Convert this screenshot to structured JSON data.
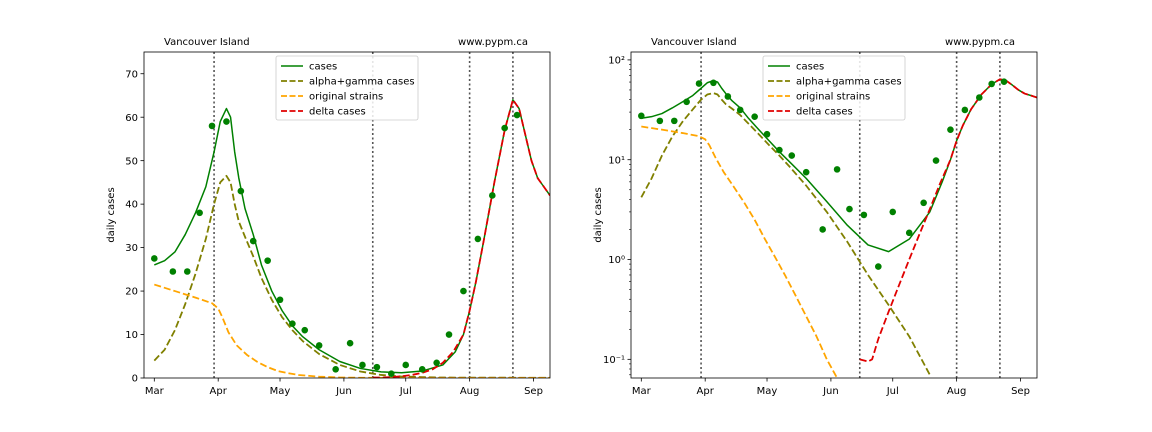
{
  "colors": {
    "cases": "#008000",
    "alpha_gamma": "#808000",
    "original": "#ffa500",
    "delta": "#e00000",
    "vline": "#555555"
  },
  "chart_data": [
    {
      "type": "line",
      "title_left": "Vancouver Island",
      "title_right": "www.pypm.ca",
      "ylabel": "daily cases",
      "yscale": "linear",
      "xlim": [
        -5,
        192
      ],
      "ylim": [
        0,
        75
      ],
      "yticks": [
        0,
        10,
        20,
        30,
        40,
        50,
        60,
        70
      ],
      "ytick_labels": [
        "0",
        "10",
        "20",
        "30",
        "40",
        "50",
        "60",
        "70"
      ],
      "xticks": [
        0,
        31,
        61,
        92,
        122,
        153,
        184
      ],
      "xtick_labels": [
        "Mar",
        "Apr",
        "May",
        "Jun",
        "Jul",
        "Aug",
        "Sep"
      ],
      "vlines": [
        29,
        106,
        153,
        174
      ],
      "legend": [
        "cases",
        "alpha+gamma cases",
        "original strains",
        "delta cases"
      ],
      "legend_position": "top-center",
      "series": [
        {
          "name": "cases",
          "style": "solid",
          "color": "cases",
          "x": [
            0,
            5,
            10,
            15,
            20,
            25,
            29,
            32,
            35,
            37,
            39,
            41,
            44,
            48,
            52,
            57,
            62,
            67,
            72,
            80,
            90,
            100,
            110,
            120,
            130,
            140,
            146,
            150,
            153,
            156,
            160,
            165,
            170,
            174,
            177,
            180,
            183,
            186,
            189,
            192
          ],
          "y": [
            26,
            27,
            29,
            33,
            38,
            44,
            52,
            59,
            62,
            60,
            52,
            46,
            39,
            33,
            26,
            20,
            15.5,
            12,
            9.5,
            6.5,
            3.8,
            2.2,
            1.4,
            1.2,
            1.6,
            3,
            6,
            10,
            15.5,
            22,
            32,
            45,
            57,
            64,
            62,
            56,
            50,
            46,
            44,
            42
          ]
        },
        {
          "name": "alpha+gamma cases",
          "style": "dashed",
          "color": "alpha_gamma",
          "x": [
            0,
            5,
            10,
            15,
            20,
            25,
            29,
            32,
            35,
            37,
            39,
            41,
            44,
            48,
            52,
            57,
            62,
            67,
            72,
            80,
            90,
            100,
            110,
            120,
            130,
            140,
            192
          ],
          "y": [
            4,
            6.5,
            11,
            17,
            24,
            32,
            40,
            45,
            46.5,
            45,
            40,
            36,
            32.5,
            28,
            23,
            18,
            14,
            11,
            8.5,
            5.5,
            3,
            1.5,
            0.7,
            0.35,
            0.2,
            0.1,
            0.05
          ]
        },
        {
          "name": "original strains",
          "style": "dashed",
          "color": "original",
          "x": [
            0,
            10,
            20,
            28,
            31,
            33,
            36,
            40,
            45,
            50,
            55,
            60,
            65,
            70,
            80,
            90,
            100,
            120,
            192
          ],
          "y": [
            21.5,
            20,
            18.5,
            17.2,
            16,
            14,
            10.5,
            7.5,
            5.3,
            3.7,
            2.5,
            1.6,
            1.1,
            0.7,
            0.3,
            0.12,
            0.05,
            0.02,
            0.02
          ]
        },
        {
          "name": "delta cases",
          "style": "dashed",
          "color": "delta",
          "x": [
            106,
            110,
            115,
            120,
            125,
            130,
            135,
            140,
            145,
            150,
            153,
            156,
            160,
            165,
            170,
            174,
            177,
            180,
            183,
            186,
            189,
            192
          ],
          "y": [
            0.1,
            0.1,
            0.2,
            0.4,
            0.7,
            1.2,
            2,
            3.5,
            6,
            10,
            15.5,
            22,
            32,
            45,
            57,
            64,
            62,
            56,
            50,
            46,
            44,
            42
          ]
        }
      ],
      "points": {
        "name": "data",
        "color": "cases",
        "x": [
          0,
          9,
          16,
          22,
          28,
          35,
          42,
          48,
          55,
          61,
          67,
          73,
          80,
          88,
          95,
          101,
          108,
          115,
          122,
          130,
          137,
          143,
          150,
          157,
          164,
          170,
          176
        ],
        "y": [
          27.5,
          24.5,
          24.5,
          38,
          58,
          59,
          43,
          31.5,
          27,
          18,
          12.5,
          11,
          7.5,
          2,
          8,
          3,
          2.5,
          1,
          3,
          2,
          3.5,
          10,
          20,
          32,
          42,
          57.5,
          60.5
        ]
      }
    },
    {
      "type": "line",
      "title_left": "Vancouver Island",
      "title_right": "www.pypm.ca",
      "ylabel": "daily cases",
      "yscale": "log",
      "xlim": [
        -5,
        192
      ],
      "ylim": [
        0.065,
        120
      ],
      "yticks": [
        0.1,
        1,
        10,
        100
      ],
      "ytick_labels": [
        "10⁻¹",
        "10⁰",
        "10¹",
        "10²"
      ],
      "xticks": [
        0,
        31,
        61,
        92,
        122,
        153,
        184
      ],
      "xtick_labels": [
        "Mar",
        "Apr",
        "May",
        "Jun",
        "Jul",
        "Aug",
        "Sep"
      ],
      "vlines": [
        29,
        106,
        153,
        174
      ],
      "legend": [
        "cases",
        "alpha+gamma cases",
        "original strains",
        "delta cases"
      ],
      "legend_position": "top-center",
      "series": [
        {
          "name": "cases",
          "style": "solid",
          "color": "cases",
          "x": [
            0,
            5,
            10,
            15,
            20,
            25,
            29,
            32,
            35,
            37,
            39,
            41,
            44,
            48,
            52,
            57,
            62,
            67,
            72,
            80,
            90,
            100,
            110,
            120,
            130,
            140,
            146,
            150,
            153,
            156,
            160,
            165,
            170,
            174,
            177,
            180,
            183,
            186,
            189,
            192
          ],
          "y": [
            26,
            27,
            29,
            33,
            38,
            44,
            52,
            59,
            62,
            60,
            52,
            46,
            39,
            33,
            26,
            20,
            15.5,
            12,
            9.5,
            6.5,
            3.8,
            2.2,
            1.4,
            1.2,
            1.6,
            3,
            6,
            10,
            15.5,
            22,
            32,
            45,
            57,
            64,
            62,
            56,
            50,
            46,
            44,
            42
          ]
        },
        {
          "name": "alpha+gamma cases",
          "style": "dashed",
          "color": "alpha_gamma",
          "x": [
            0,
            5,
            10,
            15,
            20,
            25,
            29,
            32,
            35,
            37,
            39,
            41,
            44,
            48,
            52,
            57,
            62,
            67,
            72,
            80,
            90,
            100,
            110,
            120,
            130,
            140
          ],
          "y": [
            4.2,
            6.5,
            11,
            17,
            24,
            32,
            40,
            45,
            46.5,
            45,
            40,
            36,
            32.5,
            28,
            23,
            18,
            14,
            11,
            8.5,
            5.5,
            3,
            1.5,
            0.7,
            0.35,
            0.17,
            0.07
          ]
        },
        {
          "name": "original strains",
          "style": "dashed",
          "color": "original",
          "x": [
            0,
            10,
            20,
            28,
            31,
            33,
            36,
            40,
            45,
            50,
            55,
            60,
            65,
            70,
            75,
            80,
            85,
            90,
            95
          ],
          "y": [
            21.5,
            20,
            18.5,
            17.2,
            16,
            14,
            10.5,
            7.5,
            5.3,
            3.7,
            2.5,
            1.6,
            1.05,
            0.68,
            0.43,
            0.27,
            0.17,
            0.1,
            0.065
          ]
        },
        {
          "name": "delta cases",
          "style": "dashed",
          "color": "delta",
          "x": [
            106,
            110,
            112,
            115,
            120,
            125,
            130,
            135,
            140,
            145,
            150,
            153,
            156,
            160,
            165,
            170,
            174,
            177,
            180,
            183,
            186,
            189,
            192
          ],
          "y": [
            0.1,
            0.095,
            0.1,
            0.16,
            0.3,
            0.55,
            1,
            1.8,
            3.2,
            5.8,
            10,
            15.5,
            22,
            32,
            45,
            57,
            64,
            62,
            56,
            50,
            46,
            44,
            42
          ]
        }
      ],
      "points": {
        "name": "data",
        "color": "cases",
        "x": [
          0,
          9,
          16,
          22,
          28,
          35,
          42,
          48,
          55,
          61,
          67,
          73,
          80,
          88,
          95,
          101,
          108,
          115,
          122,
          130,
          137,
          143,
          150,
          157,
          164,
          170,
          176
        ],
        "y": [
          27.5,
          24.5,
          24.5,
          38,
          58,
          59,
          43,
          31.5,
          27,
          18,
          12.5,
          11,
          7.5,
          2,
          8,
          3.2,
          2.8,
          0.85,
          3,
          1.85,
          3.7,
          9.8,
          20,
          31.5,
          42,
          57.5,
          60.5
        ]
      }
    }
  ]
}
